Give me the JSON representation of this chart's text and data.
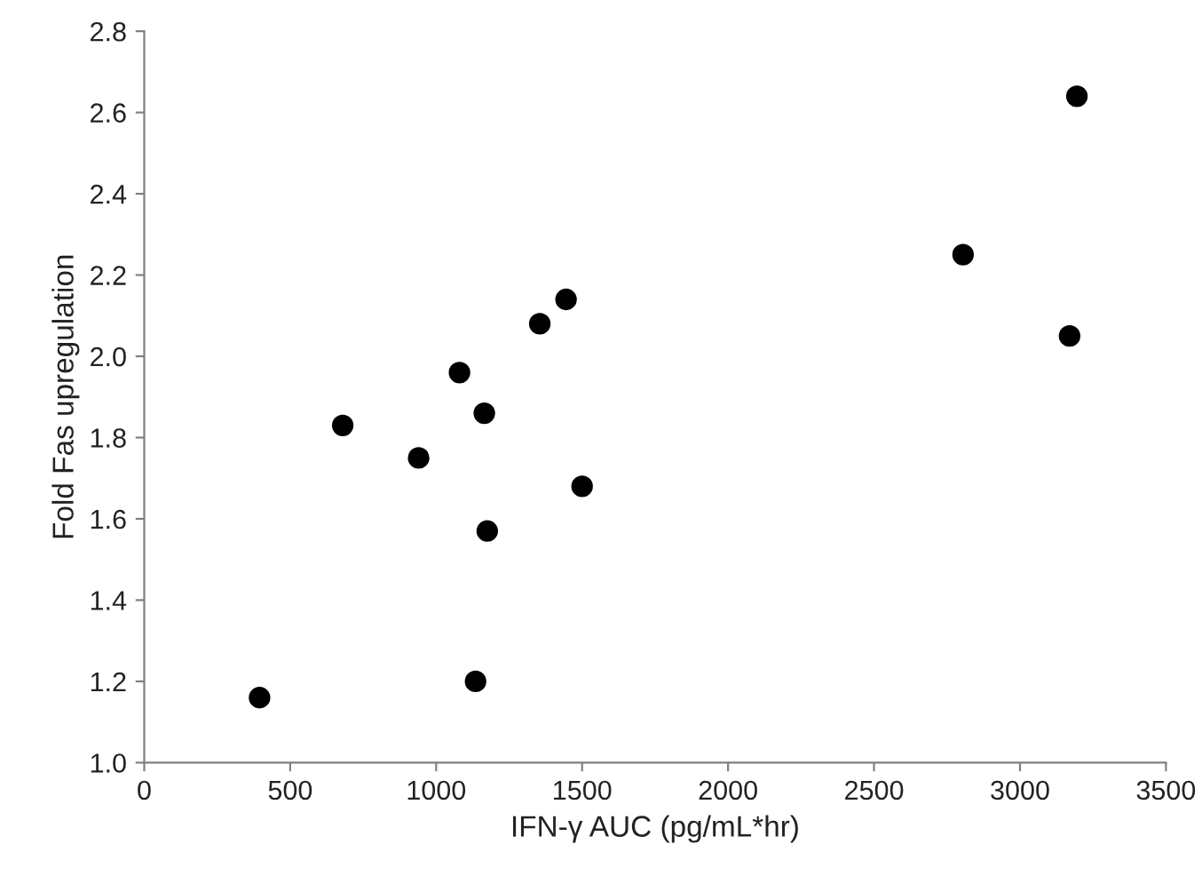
{
  "chart_data": {
    "type": "scatter",
    "xlabel": "IFN-γ AUC (pg/mL*hr)",
    "ylabel": "Fold Fas upregulation",
    "x": [
      395,
      680,
      940,
      1080,
      1165,
      1175,
      1135,
      1355,
      1445,
      1500,
      2805,
      3195,
      3170
    ],
    "values": [
      1.16,
      1.83,
      1.75,
      1.96,
      1.86,
      1.57,
      1.2,
      2.08,
      2.14,
      1.68,
      2.25,
      2.64,
      2.05
    ],
    "color": "#000000",
    "marker": "circle",
    "xlim": [
      0,
      3500
    ],
    "xticks": [
      0,
      500,
      1000,
      1500,
      2000,
      2500,
      3000,
      3500
    ],
    "ylim": [
      1.0,
      2.8
    ],
    "yticks": [
      {
        "value": 1.0,
        "label": "1.0"
      },
      {
        "value": 1.2,
        "label": "1.2"
      },
      {
        "value": 1.4,
        "label": "1.4"
      },
      {
        "value": 1.6,
        "label": "1.6"
      },
      {
        "value": 1.8,
        "label": "1.8"
      },
      {
        "value": 2.0,
        "label": "2.0"
      },
      {
        "value": 2.2,
        "label": "2.2"
      },
      {
        "value": 2.4,
        "label": "2.4"
      },
      {
        "value": 2.6,
        "label": "2.6"
      },
      {
        "value": 2.8,
        "label": "2.8"
      }
    ],
    "grid": false,
    "legend": false
  }
}
